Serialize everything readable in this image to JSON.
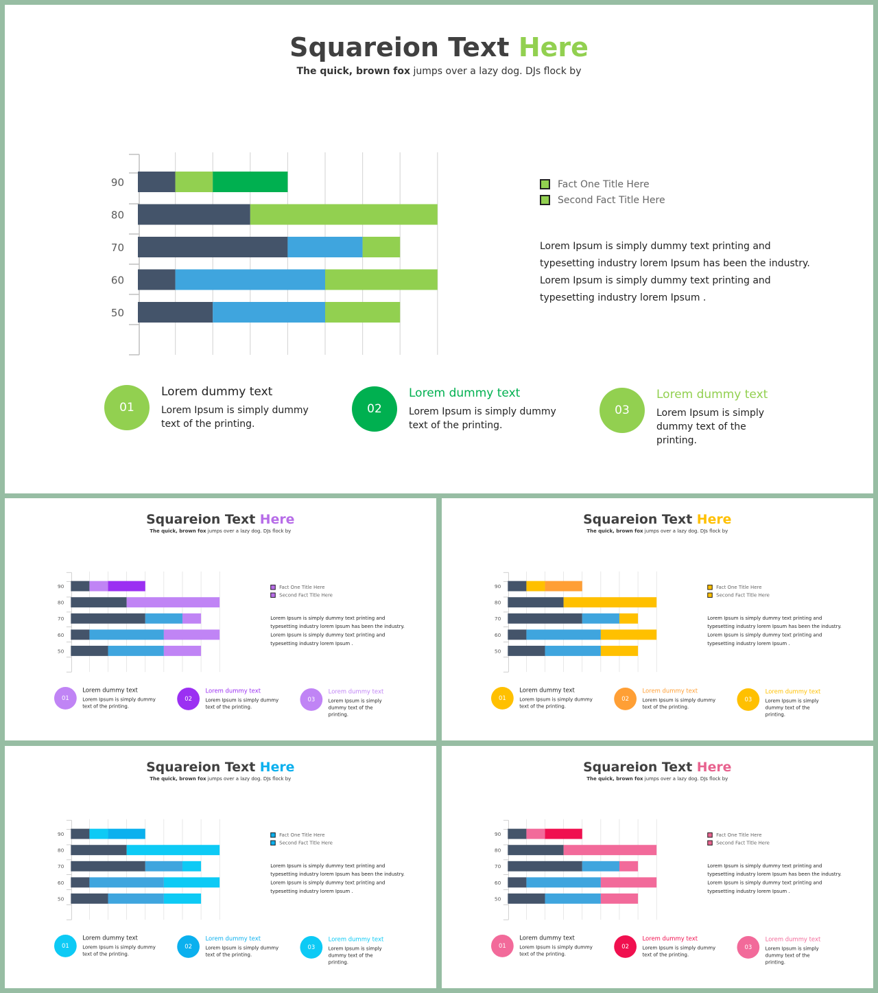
{
  "slides": [
    {
      "id": "main",
      "title_main": "Squareion Text ",
      "title_accent": "Here",
      "subtitle_bold": "The quick, brown fox",
      "subtitle_rest": " jumps over  a lazy dog.  DJs flock by",
      "colors": {
        "dark": "#44546a",
        "c1": "#92d050",
        "c2": "#00b050",
        "c3": "#3fa5de",
        "accent": "#92d050",
        "legend1": "#92d050",
        "legend2": "#92d050",
        "step1": "#92d050",
        "step2": "#00b050",
        "step3": "#92d050",
        "head1": "#222222",
        "head2": "#00b050",
        "head3": "#92d050"
      },
      "legend": [
        "Fact One Title Here",
        "Second Fact Title Here"
      ],
      "description": "Lorem Ipsum is simply dummy  text printing and typesetting industry lorem Ipsum has been the industry. Lorem Ipsum is simply dummy  text printing and typesetting industry lorem Ipsum .",
      "steps": [
        {
          "num": "01",
          "heading": "Lorem dummy text",
          "text": "Lorem Ipsum is simply dummy text of the printing."
        },
        {
          "num": "02",
          "heading": "Lorem dummy text",
          "text": "Lorem Ipsum is simply dummy text of the printing."
        },
        {
          "num": "03",
          "heading": "Lorem dummy text",
          "text": "Lorem Ipsum is simply dummy  text of the printing."
        }
      ]
    },
    {
      "id": "purple",
      "title_main": "Squareion Text ",
      "title_accent": "Here",
      "subtitle_bold": "The quick, brown fox",
      "subtitle_rest": " jumps over a lazy dog. DJs flock by",
      "colors": {
        "dark": "#44546a",
        "c1": "#c084f5",
        "c2": "#9b30f2",
        "c3": "#3fa5de",
        "accent": "#b76de8",
        "legend1": "#b76de8",
        "legend2": "#b76de8",
        "step1": "#c084f5",
        "step2": "#9b30f2",
        "step3": "#c084f5",
        "head1": "#222222",
        "head2": "#9b30f2",
        "head3": "#c084f5"
      },
      "legend": [
        "Fact One Title Here",
        "Second Fact Title Here"
      ],
      "description": "Lorem Ipsum is simply dummy text printing and typesetting industry lorem Ipsum has been the industry. Lorem Ipsum is simply dummy text printing and typesetting industry lorem Ipsum .",
      "steps": [
        {
          "num": "01",
          "heading": "Lorem dummy text",
          "text": "Lorem Ipsum is simply dummy text of the printing."
        },
        {
          "num": "02",
          "heading": "Lorem dummy text",
          "text": "Lorem Ipsum is simply dummy text of the printing."
        },
        {
          "num": "03",
          "heading": "Lorem dummy text",
          "text": "Lorem Ipsum is simply dummy text of the printing."
        }
      ]
    },
    {
      "id": "orange",
      "title_main": "Squareion Text ",
      "title_accent": "Here",
      "subtitle_bold": "The quick, brown fox",
      "subtitle_rest": " jumps over a lazy dog. DJs flock by",
      "colors": {
        "dark": "#44546a",
        "c1": "#ffc000",
        "c2": "#ff9f35",
        "c3": "#3fa5de",
        "accent": "#ffc000",
        "legend1": "#ffc000",
        "legend2": "#ffc000",
        "step1": "#ffc000",
        "step2": "#ff9f35",
        "step3": "#ffc000",
        "head1": "#222222",
        "head2": "#ff9f35",
        "head3": "#ffc000"
      },
      "legend": [
        "Fact One Title Here",
        "Second Fact Title Here"
      ],
      "description": "Lorem Ipsum is simply dummy text printing and typesetting industry lorem Ipsum has been the industry. Lorem Ipsum is simply dummy text printing and typesetting industry lorem Ipsum .",
      "steps": [
        {
          "num": "01",
          "heading": "Lorem dummy text",
          "text": "Lorem Ipsum is simply dummy text of the printing."
        },
        {
          "num": "02",
          "heading": "Lorem dummy text",
          "text": "Lorem Ipsum is simply dummy text of the printing."
        },
        {
          "num": "03",
          "heading": "Lorem dummy text",
          "text": "Lorem Ipsum is simply dummy text of the printing."
        }
      ]
    },
    {
      "id": "blue",
      "title_main": "Squareion Text ",
      "title_accent": "Here",
      "subtitle_bold": "The quick, brown fox",
      "subtitle_rest": " jumps over a lazy dog. DJs flock by",
      "colors": {
        "dark": "#44546a",
        "c1": "#0dcaf5",
        "c2": "#0bb0ee",
        "c3": "#3fa5de",
        "accent": "#0bb0ee",
        "legend1": "#0bb0ee",
        "legend2": "#0bb0ee",
        "step1": "#0dcaf5",
        "step2": "#0bb0ee",
        "step3": "#0dcaf5",
        "head1": "#222222",
        "head2": "#0bb0ee",
        "head3": "#0dcaf5"
      },
      "legend": [
        "Fact One Title Here",
        "Second Fact Title Here"
      ],
      "description": "Lorem Ipsum is simply dummy text printing and typesetting industry lorem Ipsum has been the industry. Lorem Ipsum is simply dummy text printing and typesetting industry lorem Ipsum .",
      "steps": [
        {
          "num": "01",
          "heading": "Lorem dummy text",
          "text": "Lorem Ipsum is simply dummy text of the printing."
        },
        {
          "num": "02",
          "heading": "Lorem dummy text",
          "text": "Lorem Ipsum is simply dummy text of the printing."
        },
        {
          "num": "03",
          "heading": "Lorem dummy text",
          "text": "Lorem Ipsum is simply dummy text of the printing."
        }
      ]
    },
    {
      "id": "pink",
      "title_main": "Squareion Text ",
      "title_accent": "Here",
      "subtitle_bold": "The quick, brown fox",
      "subtitle_rest": " jumps over a lazy dog. DJs flock by",
      "colors": {
        "dark": "#44546a",
        "c1": "#f26a9a",
        "c2": "#f0104f",
        "c3": "#3fa5de",
        "accent": "#e8638f",
        "legend1": "#e8638f",
        "legend2": "#e8638f",
        "step1": "#f26a9a",
        "step2": "#f0104f",
        "step3": "#f26a9a",
        "head1": "#222222",
        "head2": "#f0104f",
        "head3": "#f26a9a"
      },
      "legend": [
        "Fact One Title Here",
        "Second Fact Title Here"
      ],
      "description": "Lorem Ipsum is simply dummy text printing and typesetting industry lorem Ipsum has been the industry. Lorem Ipsum is simply dummy text printing and typesetting industry lorem Ipsum .",
      "steps": [
        {
          "num": "01",
          "heading": "Lorem dummy text",
          "text": "Lorem Ipsum is simply dummy text of the printing."
        },
        {
          "num": "02",
          "heading": "Lorem dummy text",
          "text": "Lorem Ipsum is simply dummy text of the printing."
        },
        {
          "num": "03",
          "heading": "Lorem dummy text",
          "text": "Lorem Ipsum is simply dummy text of the printing."
        }
      ]
    }
  ],
  "chart_data": {
    "type": "bar",
    "orientation": "horizontal",
    "stacked": true,
    "categories": [
      "90",
      "80",
      "70",
      "60",
      "50"
    ],
    "segments": [
      [
        {
          "value": 1,
          "color_key": "dark"
        },
        {
          "value": 1,
          "color_key": "c1"
        },
        {
          "value": 2,
          "color_key": "c2"
        }
      ],
      [
        {
          "value": 3,
          "color_key": "dark"
        },
        {
          "value": 5,
          "color_key": "c1"
        }
      ],
      [
        {
          "value": 4,
          "color_key": "dark"
        },
        {
          "value": 2,
          "color_key": "c3"
        },
        {
          "value": 1,
          "color_key": "c1"
        }
      ],
      [
        {
          "value": 1,
          "color_key": "dark"
        },
        {
          "value": 4,
          "color_key": "c3"
        },
        {
          "value": 3,
          "color_key": "c1"
        }
      ],
      [
        {
          "value": 2,
          "color_key": "dark"
        },
        {
          "value": 3,
          "color_key": "c3"
        },
        {
          "value": 2,
          "color_key": "c1"
        }
      ]
    ],
    "xlim": [
      0,
      8
    ],
    "grid": true,
    "title": "",
    "xlabel": "",
    "ylabel": ""
  }
}
